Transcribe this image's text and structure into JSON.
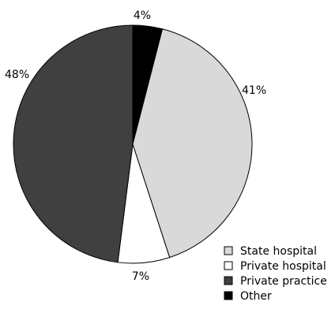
{
  "chart_data": {
    "type": "pie",
    "title": "",
    "start_angle_deg": 0,
    "direction": "clockwise",
    "slices": [
      {
        "name": "Other",
        "value": 4,
        "label": "4%",
        "color": "#000000"
      },
      {
        "name": "State hospital",
        "value": 41,
        "label": "41%",
        "color": "#d9d9d9"
      },
      {
        "name": "Private hospital",
        "value": 7,
        "label": "7%",
        "color": "#ffffff"
      },
      {
        "name": "Private practice",
        "value": 48,
        "label": "48%",
        "color": "#404040"
      }
    ],
    "legend": {
      "placement": "bottom-right",
      "entries": [
        {
          "label": "State hospital",
          "color": "#d9d9d9"
        },
        {
          "label": "Private hospital",
          "color": "#ffffff"
        },
        {
          "label": "Private practice",
          "color": "#404040"
        },
        {
          "label": "Other",
          "color": "#000000"
        }
      ]
    }
  }
}
